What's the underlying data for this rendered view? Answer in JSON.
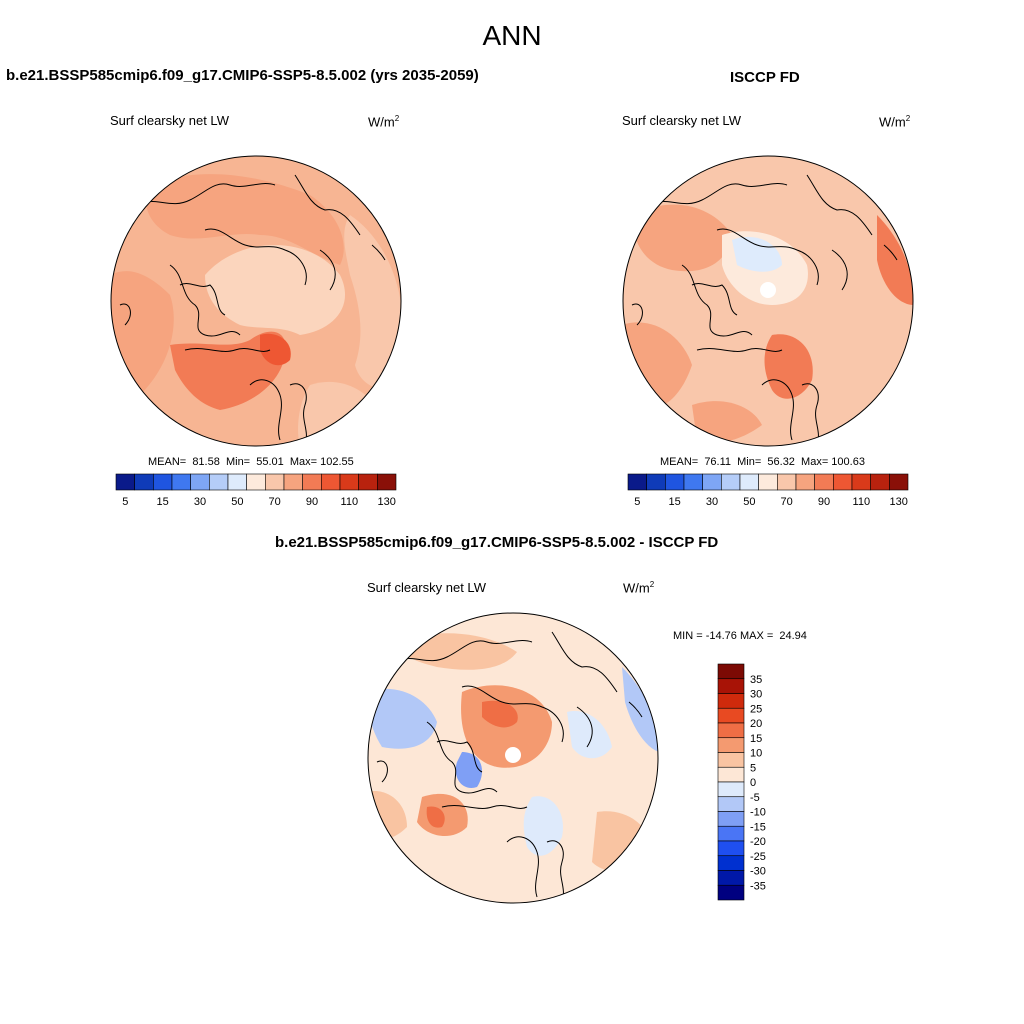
{
  "figure": {
    "title": "ANN"
  },
  "panels": [
    {
      "title": "b.e21.BSSP585cmip6.f09_g17.CMIP6-SSP5-8.5.002 (yrs 2035-2059)",
      "variable": "Surf clearsky net LW",
      "units": "W/m",
      "units_exp": "2",
      "stats_text": "MEAN=  81.58  Min=  55.01  Max= 102.55"
    },
    {
      "title": "ISCCP FD",
      "variable": "Surf clearsky net LW",
      "units": "W/m",
      "units_exp": "2",
      "stats_text": "MEAN=  76.11  Min=  56.32  Max= 100.63"
    },
    {
      "title": "b.e21.BSSP585cmip6.f09_g17.CMIP6-SSP5-8.5.002 - ISCCP FD",
      "variable": "Surf clearsky net LW",
      "units": "W/m",
      "units_exp": "2",
      "stats_text": "MIN = -14.76 MAX =  24.94"
    }
  ],
  "colorbar_abs": {
    "colors": [
      "#0a1a8a",
      "#0f3bb8",
      "#1f55e0",
      "#3f78f0",
      "#7ea6f5",
      "#b5cdf8",
      "#deebfc",
      "#fdeadc",
      "#f9c7ab",
      "#f6a47f",
      "#f27b55",
      "#ee5733",
      "#d93a1a",
      "#b8220e",
      "#8a1008"
    ],
    "tick_labels": [
      "5",
      "15",
      "30",
      "50",
      "70",
      "90",
      "110",
      "130"
    ]
  },
  "colorbar_diff": {
    "colors": [
      "#000080",
      "#0018a8",
      "#0030d0",
      "#1f4ff0",
      "#4a75f5",
      "#7f9ff5",
      "#b2c8f7",
      "#deeafb",
      "#fde7d6",
      "#f9c4a2",
      "#f49a70",
      "#ef6e45",
      "#e84a22",
      "#cf2a0c",
      "#a81306",
      "#7c0a04"
    ],
    "tick_labels": [
      "35",
      "30",
      "25",
      "20",
      "15",
      "10",
      "5",
      "0",
      "-5",
      "-10",
      "-15",
      "-20",
      "-25",
      "-30",
      "-35"
    ]
  },
  "chart_data": [
    {
      "type": "heatmap",
      "projection": "north polar stereographic",
      "title": "b.e21.BSSP585cmip6.f09_g17.CMIP6-SSP5-8.5.002 (yrs 2035-2059)",
      "variable": "Surf clearsky net LW",
      "units": "W/m2",
      "mean": 81.58,
      "min": 55.01,
      "max": 102.55,
      "levels": [
        5,
        10,
        15,
        20,
        30,
        40,
        50,
        60,
        70,
        80,
        90,
        100,
        110,
        120,
        130
      ]
    },
    {
      "type": "heatmap",
      "projection": "north polar stereographic",
      "title": "ISCCP FD",
      "variable": "Surf clearsky net LW",
      "units": "W/m2",
      "mean": 76.11,
      "min": 56.32,
      "max": 100.63,
      "levels": [
        5,
        10,
        15,
        20,
        30,
        40,
        50,
        60,
        70,
        80,
        90,
        100,
        110,
        120,
        130
      ]
    },
    {
      "type": "heatmap",
      "projection": "north polar stereographic",
      "title": "b.e21.BSSP585cmip6.f09_g17.CMIP6-SSP5-8.5.002 - ISCCP FD",
      "variable": "Surf clearsky net LW",
      "units": "W/m2",
      "min": -14.76,
      "max": 24.94,
      "levels": [
        -35,
        -30,
        -25,
        -20,
        -15,
        -10,
        -5,
        0,
        5,
        10,
        15,
        20,
        25,
        30,
        35
      ]
    }
  ]
}
